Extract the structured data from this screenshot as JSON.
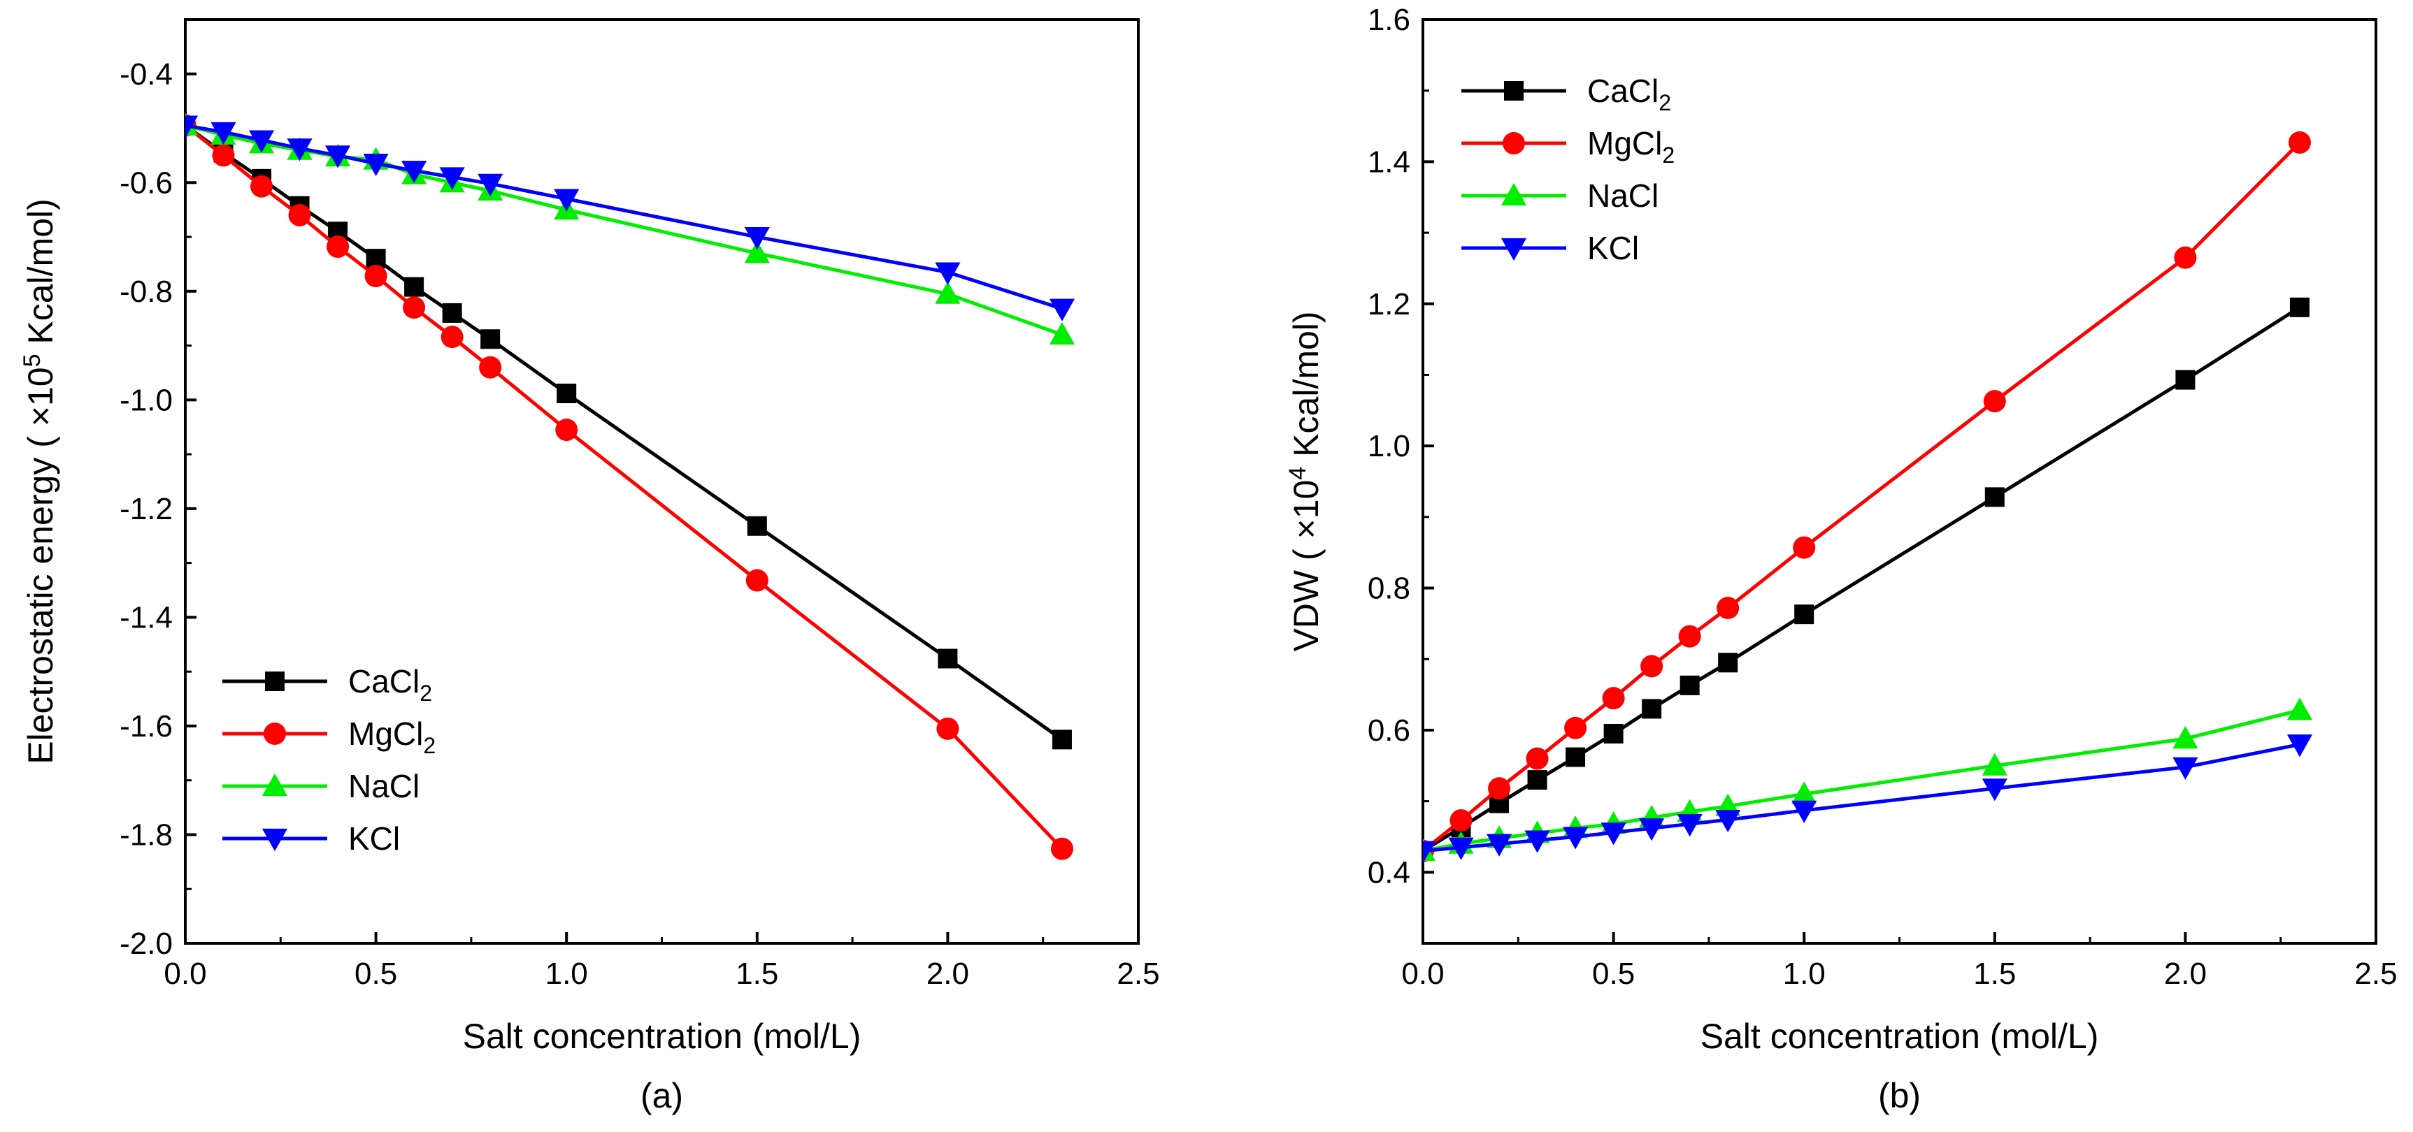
{
  "figure": {
    "colors": {
      "CaCl2": "#000000",
      "MgCl2": "#ff0000",
      "NaCl": "#00ee00",
      "KCl": "#0000ff"
    }
  },
  "chart_data": [
    {
      "type": "line",
      "panel_label": "(a)",
      "title": "",
      "xlabel": "Salt concentration (mol/L)",
      "ylabel_parts": [
        "Electrostatic energy ( ×10",
        "5",
        " Kcal/mol)"
      ],
      "xlim": [
        0.0,
        2.5
      ],
      "ylim": [
        -2.0,
        -0.3
      ],
      "xticks": [
        0.0,
        0.5,
        1.0,
        1.5,
        2.0,
        2.5
      ],
      "xtick_labels": [
        "0.0",
        "0.5",
        "1.0",
        "1.5",
        "2.0",
        "2.5"
      ],
      "yticks": [
        -2.0,
        -1.8,
        -1.6,
        -1.4,
        -1.2,
        -1.0,
        -0.8,
        -0.6,
        -0.4
      ],
      "ytick_labels": [
        "-2.0",
        "-1.8",
        "-1.6",
        "-1.4",
        "-1.2",
        "-1.0",
        "-0.8",
        "-0.6",
        "-0.4"
      ],
      "legend_position": "bottom-left",
      "x": [
        0.0,
        0.1,
        0.2,
        0.3,
        0.4,
        0.5,
        0.6,
        0.7,
        0.8,
        1.0,
        1.5,
        2.0,
        2.3
      ],
      "series": [
        {
          "key": "CaCl2",
          "name": "CaCl",
          "subscript": "2",
          "marker": "square",
          "values": [
            -0.495,
            -0.545,
            -0.593,
            -0.643,
            -0.69,
            -0.74,
            -0.792,
            -0.84,
            -0.888,
            -0.988,
            -1.232,
            -1.476,
            -1.625
          ]
        },
        {
          "key": "MgCl2",
          "name": "MgCl",
          "subscript": "2",
          "marker": "circle",
          "values": [
            -0.495,
            -0.55,
            -0.607,
            -0.66,
            -0.718,
            -0.772,
            -0.83,
            -0.884,
            -0.94,
            -1.055,
            -1.332,
            -1.605,
            -1.826
          ]
        },
        {
          "key": "NaCl",
          "name": "NaCl",
          "subscript": "",
          "marker": "triangle-up",
          "values": [
            -0.495,
            -0.512,
            -0.528,
            -0.54,
            -0.552,
            -0.558,
            -0.585,
            -0.6,
            -0.615,
            -0.65,
            -0.73,
            -0.805,
            -0.88
          ]
        },
        {
          "key": "KCl",
          "name": "KCl",
          "subscript": "",
          "marker": "triangle-down",
          "values": [
            -0.495,
            -0.507,
            -0.522,
            -0.537,
            -0.55,
            -0.565,
            -0.578,
            -0.59,
            -0.602,
            -0.63,
            -0.7,
            -0.765,
            -0.832
          ]
        }
      ]
    },
    {
      "type": "line",
      "panel_label": "(b)",
      "title": "",
      "xlabel": "Salt concentration (mol/L)",
      "ylabel_parts": [
        "VDW ( ×10",
        "4",
        " Kcal/mol)"
      ],
      "xlim": [
        0.0,
        2.5
      ],
      "ylim": [
        0.3,
        1.6
      ],
      "xticks": [
        0.0,
        0.5,
        1.0,
        1.5,
        2.0,
        2.5
      ],
      "xtick_labels": [
        "0.0",
        "0.5",
        "1.0",
        "1.5",
        "2.0",
        "2.5"
      ],
      "yticks": [
        0.4,
        0.6,
        0.8,
        1.0,
        1.2,
        1.4,
        1.6
      ],
      "ytick_labels": [
        "0.4",
        "0.6",
        "0.8",
        "1.0",
        "1.2",
        "1.4",
        "1.6"
      ],
      "legend_position": "top-left",
      "x": [
        0.0,
        0.1,
        0.2,
        0.3,
        0.4,
        0.5,
        0.6,
        0.7,
        0.8,
        1.0,
        1.5,
        2.0,
        2.3
      ],
      "series": [
        {
          "key": "CaCl2",
          "name": "CaCl",
          "subscript": "2",
          "marker": "square",
          "values": [
            0.43,
            0.463,
            0.497,
            0.53,
            0.562,
            0.595,
            0.63,
            0.663,
            0.695,
            0.763,
            0.928,
            1.093,
            1.195
          ]
        },
        {
          "key": "MgCl2",
          "name": "MgCl",
          "subscript": "2",
          "marker": "circle",
          "values": [
            0.43,
            0.473,
            0.518,
            0.56,
            0.603,
            0.645,
            0.69,
            0.732,
            0.772,
            0.857,
            1.063,
            1.265,
            1.427
          ]
        },
        {
          "key": "NaCl",
          "name": "NaCl",
          "subscript": "",
          "marker": "triangle-up",
          "values": [
            0.43,
            0.44,
            0.448,
            0.455,
            0.462,
            0.468,
            0.477,
            0.485,
            0.493,
            0.51,
            0.55,
            0.588,
            0.628
          ]
        },
        {
          "key": "KCl",
          "name": "KCl",
          "subscript": "",
          "marker": "triangle-down",
          "values": [
            0.43,
            0.435,
            0.44,
            0.445,
            0.45,
            0.456,
            0.462,
            0.468,
            0.474,
            0.487,
            0.518,
            0.548,
            0.58
          ]
        }
      ]
    }
  ]
}
